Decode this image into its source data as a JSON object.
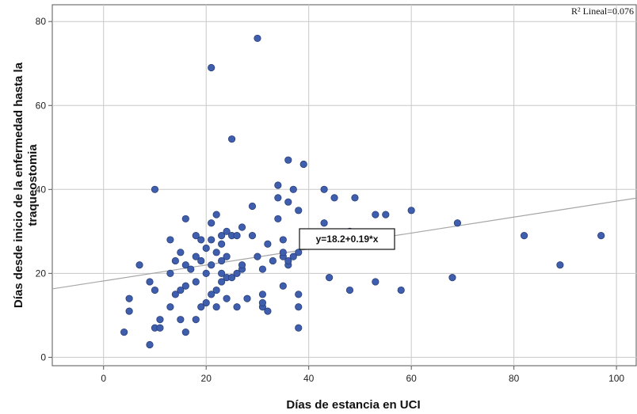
{
  "chart_data": {
    "type": "scatter",
    "xlabel": "Días de estancia en UCI",
    "ylabel": "Días desde inicio de la enfermedad hasta la traqueostomia",
    "xlim": [
      -10,
      104
    ],
    "ylim": [
      -2,
      84
    ],
    "xticks": [
      0,
      20,
      40,
      60,
      80,
      100
    ],
    "yticks": [
      0,
      20,
      40,
      60,
      80
    ],
    "grid": true,
    "r2_label": "R² Lineal=0.076",
    "fit": {
      "intercept": 18.2,
      "slope": 0.19,
      "label": "y=18.2+0.19*x"
    },
    "marker_color": "#3f5fae",
    "line_color": "#a6a6a6",
    "points": [
      {
        "x": 4,
        "y": 6
      },
      {
        "x": 5,
        "y": 11
      },
      {
        "x": 5,
        "y": 14
      },
      {
        "x": 7,
        "y": 22
      },
      {
        "x": 9,
        "y": 3
      },
      {
        "x": 9,
        "y": 18
      },
      {
        "x": 10,
        "y": 7
      },
      {
        "x": 10,
        "y": 16
      },
      {
        "x": 10,
        "y": 40
      },
      {
        "x": 11,
        "y": 7
      },
      {
        "x": 11,
        "y": 9
      },
      {
        "x": 13,
        "y": 12
      },
      {
        "x": 13,
        "y": 20
      },
      {
        "x": 13,
        "y": 28
      },
      {
        "x": 14,
        "y": 15
      },
      {
        "x": 14,
        "y": 23
      },
      {
        "x": 15,
        "y": 9
      },
      {
        "x": 15,
        "y": 16
      },
      {
        "x": 15,
        "y": 25
      },
      {
        "x": 16,
        "y": 6
      },
      {
        "x": 16,
        "y": 17
      },
      {
        "x": 16,
        "y": 22
      },
      {
        "x": 16,
        "y": 33
      },
      {
        "x": 17,
        "y": 21
      },
      {
        "x": 18,
        "y": 9
      },
      {
        "x": 18,
        "y": 18
      },
      {
        "x": 18,
        "y": 24
      },
      {
        "x": 18,
        "y": 29
      },
      {
        "x": 19,
        "y": 12
      },
      {
        "x": 19,
        "y": 23
      },
      {
        "x": 19,
        "y": 28
      },
      {
        "x": 20,
        "y": 13
      },
      {
        "x": 20,
        "y": 20
      },
      {
        "x": 20,
        "y": 26
      },
      {
        "x": 21,
        "y": 15
      },
      {
        "x": 21,
        "y": 22
      },
      {
        "x": 21,
        "y": 28
      },
      {
        "x": 21,
        "y": 32
      },
      {
        "x": 21,
        "y": 69
      },
      {
        "x": 22,
        "y": 12
      },
      {
        "x": 22,
        "y": 16
      },
      {
        "x": 22,
        "y": 25
      },
      {
        "x": 22,
        "y": 34
      },
      {
        "x": 23,
        "y": 18
      },
      {
        "x": 23,
        "y": 20
      },
      {
        "x": 23,
        "y": 23
      },
      {
        "x": 23,
        "y": 27
      },
      {
        "x": 23,
        "y": 29
      },
      {
        "x": 24,
        "y": 14
      },
      {
        "x": 24,
        "y": 19
      },
      {
        "x": 24,
        "y": 24
      },
      {
        "x": 24,
        "y": 30
      },
      {
        "x": 25,
        "y": 19
      },
      {
        "x": 25,
        "y": 29
      },
      {
        "x": 25,
        "y": 52
      },
      {
        "x": 26,
        "y": 12
      },
      {
        "x": 26,
        "y": 20
      },
      {
        "x": 26,
        "y": 29
      },
      {
        "x": 27,
        "y": 21
      },
      {
        "x": 27,
        "y": 22
      },
      {
        "x": 27,
        "y": 31
      },
      {
        "x": 28,
        "y": 14
      },
      {
        "x": 29,
        "y": 29
      },
      {
        "x": 29,
        "y": 36
      },
      {
        "x": 30,
        "y": 24
      },
      {
        "x": 30,
        "y": 76
      },
      {
        "x": 31,
        "y": 12
      },
      {
        "x": 31,
        "y": 13
      },
      {
        "x": 31,
        "y": 15
      },
      {
        "x": 31,
        "y": 21
      },
      {
        "x": 32,
        "y": 11
      },
      {
        "x": 32,
        "y": 27
      },
      {
        "x": 33,
        "y": 23
      },
      {
        "x": 34,
        "y": 33
      },
      {
        "x": 34,
        "y": 38
      },
      {
        "x": 34,
        "y": 41
      },
      {
        "x": 35,
        "y": 17
      },
      {
        "x": 35,
        "y": 24
      },
      {
        "x": 35,
        "y": 25
      },
      {
        "x": 35,
        "y": 28
      },
      {
        "x": 36,
        "y": 22
      },
      {
        "x": 36,
        "y": 23
      },
      {
        "x": 36,
        "y": 37
      },
      {
        "x": 36,
        "y": 47
      },
      {
        "x": 37,
        "y": 24
      },
      {
        "x": 37,
        "y": 40
      },
      {
        "x": 38,
        "y": 7
      },
      {
        "x": 38,
        "y": 12
      },
      {
        "x": 38,
        "y": 15
      },
      {
        "x": 38,
        "y": 25
      },
      {
        "x": 38,
        "y": 35
      },
      {
        "x": 39,
        "y": 46
      },
      {
        "x": 43,
        "y": 40
      },
      {
        "x": 43,
        "y": 32
      },
      {
        "x": 44,
        "y": 19
      },
      {
        "x": 45,
        "y": 38
      },
      {
        "x": 48,
        "y": 16
      },
      {
        "x": 48,
        "y": 30
      },
      {
        "x": 49,
        "y": 38
      },
      {
        "x": 53,
        "y": 18
      },
      {
        "x": 53,
        "y": 34
      },
      {
        "x": 55,
        "y": 34
      },
      {
        "x": 58,
        "y": 16
      },
      {
        "x": 60,
        "y": 35
      },
      {
        "x": 68,
        "y": 19
      },
      {
        "x": 69,
        "y": 32
      },
      {
        "x": 82,
        "y": 29
      },
      {
        "x": 89,
        "y": 22
      },
      {
        "x": 97,
        "y": 29
      }
    ]
  }
}
